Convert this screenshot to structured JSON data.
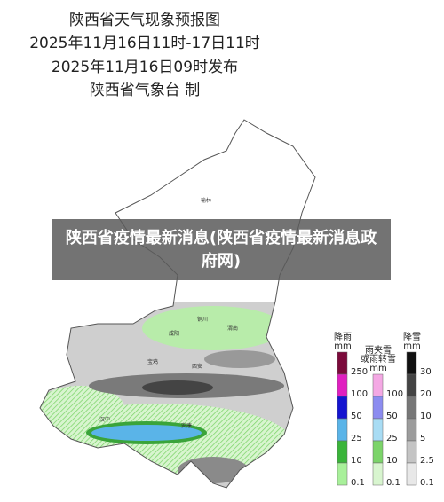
{
  "header": {
    "title": "陕西省天气现象预报图",
    "period": "2025年11月16日11时-17日11时",
    "issued": "2025年11月16日09时发布",
    "issuer": "陕西省气象台 制"
  },
  "banner": "陕西省疫情最新消息(陕西省疫情最新消息政府网)",
  "cities": [
    "榆林",
    "铜川",
    "渭南",
    "咸阳",
    "宝鸡",
    "西安",
    "汉中",
    "安康"
  ],
  "legend": [
    {
      "title": [
        "降雨",
        "mm"
      ],
      "values": [
        "250",
        "100",
        "50",
        "25",
        "10",
        "0.1"
      ]
    },
    {
      "title": [
        "雨夹雪",
        "或雨转雪",
        "mm"
      ],
      "values": [
        "100",
        "50",
        "25",
        "10",
        "0.1"
      ]
    },
    {
      "title": [
        "降雪",
        "mm"
      ],
      "values": [
        "30",
        "20",
        "10",
        "5",
        "2.5",
        "0.1"
      ]
    }
  ]
}
